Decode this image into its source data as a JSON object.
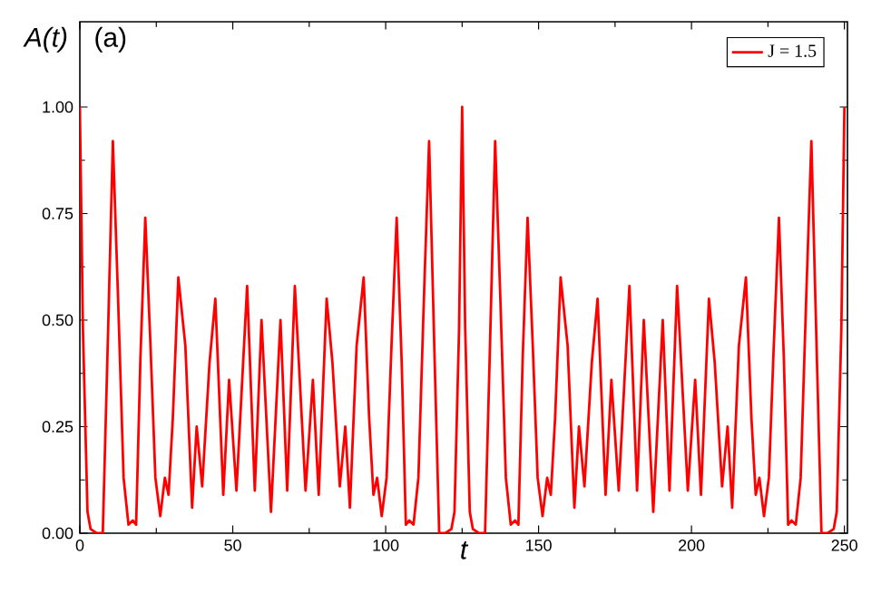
{
  "chart_data": {
    "type": "line",
    "xlabel": "t",
    "ylabel": "A(t)",
    "annotations": [
      "(a)"
    ],
    "xlim": [
      0,
      251
    ],
    "ylim": [
      0,
      1.2
    ],
    "xticks": [
      0,
      50,
      100,
      150,
      200,
      250
    ],
    "yticks": [
      {
        "value": 0,
        "label": "0.00"
      },
      {
        "value": 0.25,
        "label": "0.25"
      },
      {
        "value": 0.5,
        "label": "0.50"
      },
      {
        "value": 0.75,
        "label": "0.75"
      },
      {
        "value": 1,
        "label": "1.00"
      }
    ],
    "legend": "top right",
    "grid": false,
    "marker": "none",
    "line_style": "solid",
    "series": [
      {
        "name": "J = 1.5",
        "color": "#ff0000",
        "x": [
          0,
          1.0,
          2.5,
          3.5,
          5.5,
          7.5,
          9.0,
          10.8,
          12.5,
          14.3,
          15.9,
          17.3,
          18.4,
          19.8,
          21.4,
          23.1,
          24.7,
          26.3,
          27.8,
          29.0,
          30.4,
          32.2,
          34.5,
          36.7,
          38.2,
          40.0,
          42.4,
          44.3,
          46.9,
          48.8,
          51.2,
          54.7,
          57.2,
          59.4,
          62.5,
          65.6,
          67.8,
          70.3,
          73.8,
          76.2,
          78.1,
          80.7,
          82.6,
          85.0,
          86.8,
          88.3,
          90.5,
          92.8,
          94.6,
          96.0,
          97.2,
          98.7,
          100.3,
          101.9,
          103.6,
          105.2,
          106.6,
          107.7,
          109.1,
          110.7,
          112.5,
          114.2,
          116.0,
          117.5,
          119.5,
          121.5,
          122.5,
          124.0,
          125,
          126.0,
          127.5,
          128.5,
          130.5,
          132.5,
          134.0,
          135.8,
          137.5,
          139.3,
          140.9,
          142.3,
          143.4,
          144.8,
          146.4,
          148.1,
          149.7,
          151.3,
          152.8,
          154.0,
          155.4,
          157.2,
          159.5,
          161.7,
          163.2,
          165.0,
          167.4,
          169.3,
          171.9,
          173.8,
          176.2,
          179.7,
          182.2,
          184.4,
          187.5,
          190.6,
          192.8,
          195.3,
          198.8,
          201.2,
          203.1,
          205.7,
          207.6,
          210.0,
          211.8,
          213.3,
          215.5,
          217.8,
          219.6,
          221.0,
          222.2,
          223.7,
          225.3,
          226.9,
          228.6,
          230.2,
          231.6,
          232.7,
          234.1,
          235.7,
          237.5,
          239.2,
          241.0,
          242.5,
          244.5,
          246.5,
          247.5,
          249.0,
          250
        ],
        "values": [
          1.0,
          0.48,
          0.05,
          0.01,
          0,
          0,
          0.41,
          0.92,
          0.55,
          0.13,
          0.02,
          0.03,
          0.02,
          0.41,
          0.74,
          0.44,
          0.13,
          0.04,
          0.13,
          0.09,
          0.27,
          0.6,
          0.44,
          0.06,
          0.25,
          0.11,
          0.4,
          0.55,
          0.09,
          0.36,
          0.1,
          0.58,
          0.1,
          0.5,
          0.05,
          0.5,
          0.1,
          0.58,
          0.1,
          0.36,
          0.09,
          0.55,
          0.4,
          0.11,
          0.25,
          0.06,
          0.44,
          0.6,
          0.27,
          0.09,
          0.13,
          0.04,
          0.13,
          0.44,
          0.74,
          0.41,
          0.02,
          0.03,
          0.02,
          0.13,
          0.55,
          0.92,
          0.41,
          0,
          0,
          0.01,
          0.05,
          0.48,
          1.0,
          0.48,
          0.05,
          0.01,
          0,
          0,
          0.41,
          0.92,
          0.55,
          0.13,
          0.02,
          0.03,
          0.02,
          0.41,
          0.74,
          0.44,
          0.13,
          0.04,
          0.13,
          0.09,
          0.27,
          0.6,
          0.44,
          0.06,
          0.25,
          0.11,
          0.4,
          0.55,
          0.09,
          0.36,
          0.1,
          0.58,
          0.1,
          0.5,
          0.05,
          0.5,
          0.1,
          0.58,
          0.1,
          0.36,
          0.09,
          0.55,
          0.4,
          0.11,
          0.25,
          0.06,
          0.44,
          0.6,
          0.27,
          0.09,
          0.13,
          0.04,
          0.13,
          0.44,
          0.74,
          0.41,
          0.02,
          0.03,
          0.02,
          0.13,
          0.55,
          0.92,
          0.41,
          0,
          0,
          0.01,
          0.05,
          0.48,
          1.0
        ]
      }
    ]
  }
}
